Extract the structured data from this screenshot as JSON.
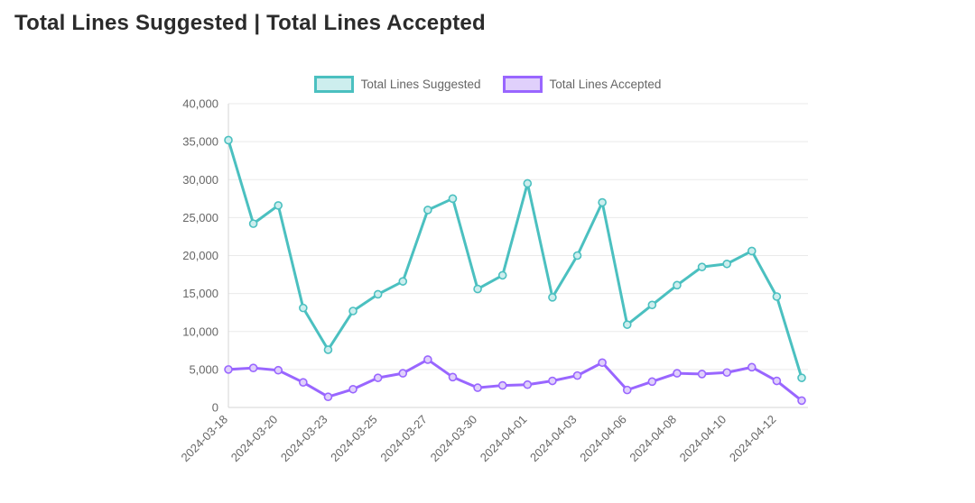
{
  "page": {
    "title": "Total Lines Suggested | Total Lines Accepted"
  },
  "chart_data": {
    "type": "line",
    "title": "Total Lines Suggested | Total Lines Accepted",
    "legend_position": "top",
    "grid": "horizontal",
    "ylim": [
      0,
      40000
    ],
    "y_ticks": [
      0,
      5000,
      10000,
      15000,
      20000,
      25000,
      30000,
      35000,
      40000
    ],
    "x_tick_labels": [
      "2024-03-18",
      "2024-03-20",
      "2024-03-23",
      "2024-03-25",
      "2024-03-27",
      "2024-03-30",
      "2024-04-01",
      "2024-04-03",
      "2024-04-06",
      "2024-04-08",
      "2024-04-10",
      "2024-04-12"
    ],
    "x_label_every": 2,
    "num_points": 24,
    "axis_color": "#d6d6d6",
    "grid_color": "#eaeaea",
    "tick_label_color": "#666666",
    "series": [
      {
        "name": "Total Lines Suggested",
        "color": "#4BC0C0",
        "fill": "#cdeeee",
        "values": [
          35200,
          24200,
          26600,
          13100,
          7600,
          12700,
          14900,
          16600,
          26000,
          27500,
          15600,
          17400,
          29500,
          14500,
          20000,
          27000,
          10900,
          13500,
          16100,
          18500,
          18900,
          20600,
          14600,
          3900
        ]
      },
      {
        "name": "Total Lines Accepted",
        "color": "#9966FF",
        "fill": "#e0d0fb",
        "values": [
          5000,
          5200,
          4900,
          3300,
          1400,
          2400,
          3900,
          4500,
          6300,
          4000,
          2600,
          2900,
          3000,
          3500,
          4200,
          5900,
          2300,
          3400,
          4500,
          4400,
          4600,
          5300,
          3500,
          900
        ]
      }
    ]
  }
}
